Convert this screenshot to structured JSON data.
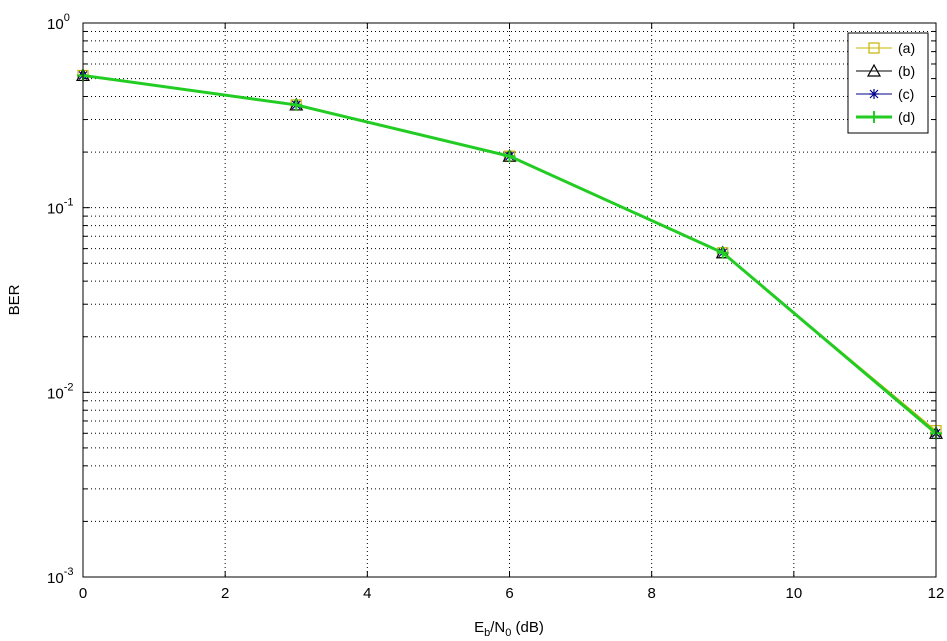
{
  "chart_data": {
    "type": "line",
    "xlabel": {
      "base": "E",
      "sub1": "b",
      "mid": "/N",
      "sub2": "0",
      "tail": " (dB)"
    },
    "ylabel": "BER",
    "xlim": [
      0,
      12
    ],
    "ylim": [
      0.001,
      1
    ],
    "yscale": "log",
    "grid": true,
    "legend_placement": "top-right",
    "x_ticks": [
      0,
      2,
      4,
      6,
      8,
      10,
      12
    ],
    "x_tick_labels": [
      "0",
      "2",
      "4",
      "6",
      "8",
      "10",
      "12"
    ],
    "y_ticks": [
      {
        "value": 1,
        "base": "10",
        "exp": "0"
      },
      {
        "value": 0.1,
        "base": "10",
        "exp": "-1"
      },
      {
        "value": 0.01,
        "base": "10",
        "exp": "-2"
      },
      {
        "value": 0.001,
        "base": "10",
        "exp": "-3"
      }
    ],
    "x": [
      0,
      3,
      6,
      9,
      12
    ],
    "series": [
      {
        "name": "(a)",
        "values": [
          0.52,
          0.36,
          0.19,
          0.057,
          0.0062
        ],
        "color": "#c8b400",
        "marker": "square",
        "lineWidth": 1
      },
      {
        "name": "(b)",
        "values": [
          0.52,
          0.36,
          0.19,
          0.057,
          0.006
        ],
        "color": "#000000",
        "marker": "triangle",
        "lineWidth": 1
      },
      {
        "name": "(c)",
        "values": [
          0.52,
          0.36,
          0.19,
          0.057,
          0.006
        ],
        "color": "#00008b",
        "marker": "star",
        "lineWidth": 1
      },
      {
        "name": "(d)",
        "values": [
          0.52,
          0.36,
          0.19,
          0.057,
          0.006
        ],
        "color": "#22cc22",
        "marker": "plus",
        "lineWidth": 3
      }
    ]
  }
}
